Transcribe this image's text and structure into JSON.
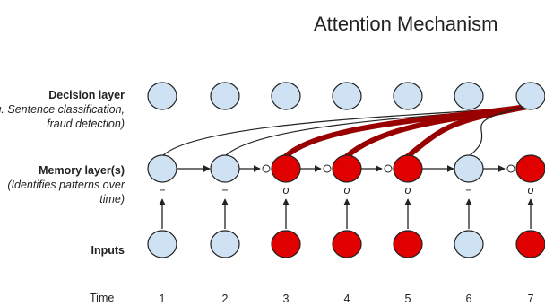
{
  "title": "Attention Mechanism",
  "labels": {
    "decision": {
      "title": "Decision layer",
      "sub": "(e.g. Sentence classification, fraud detection)"
    },
    "memory": {
      "title": "Memory layer(s)",
      "sub": "(Identifies patterns over time)"
    },
    "inputs": {
      "title": "Inputs"
    },
    "time": "Time"
  },
  "timesteps": [
    {
      "t": "1",
      "active": false,
      "gate": "−"
    },
    {
      "t": "2",
      "active": false,
      "gate": "−"
    },
    {
      "t": "3",
      "active": true,
      "gate": "o"
    },
    {
      "t": "4",
      "active": true,
      "gate": "o"
    },
    {
      "t": "5",
      "active": true,
      "gate": "o"
    },
    {
      "t": "6",
      "active": false,
      "gate": "−"
    },
    {
      "t": "7",
      "active": true,
      "gate": "o"
    }
  ],
  "colors": {
    "inactive_fill": "#cfe2f3",
    "active_fill": "#e00000",
    "attention_strong": "#990000",
    "attention_weak": "#222222"
  }
}
